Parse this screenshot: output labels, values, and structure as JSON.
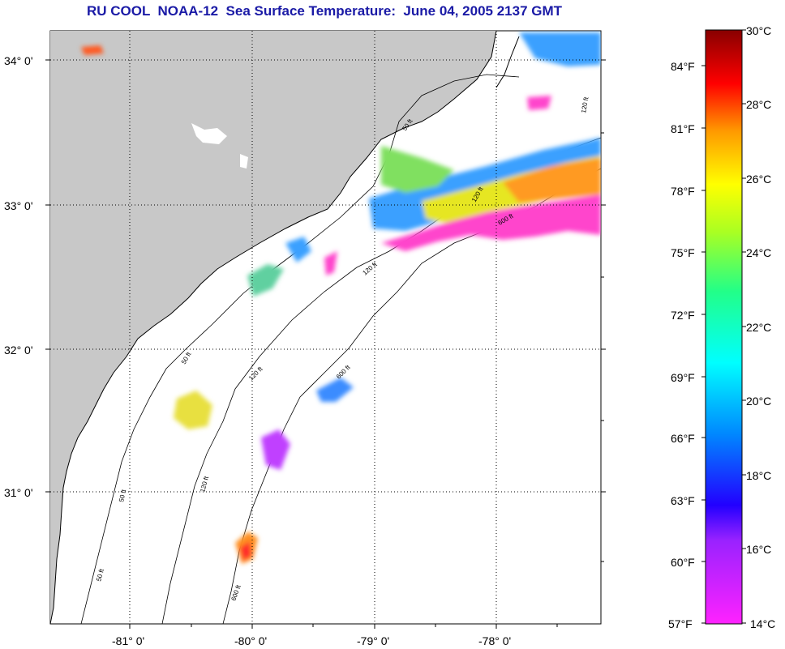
{
  "title": "RU COOL  NOAA-12  Sea Surface Temperature:  June 04, 2005 2137 GMT",
  "map": {
    "lon_labels": [
      "-81° 0'",
      "-80° 0'",
      "-79° 0'",
      "-78° 0'"
    ],
    "lat_labels": [
      "34° 0'",
      "33° 0'",
      "32° 0'",
      "31° 0'"
    ],
    "contour_labels": [
      "50 ft",
      "120 ft",
      "600 ft"
    ],
    "colors": {
      "land": "#c8c8c8",
      "ocean": "#ffffff",
      "gridline": "#000000"
    }
  },
  "colorbar": {
    "celsius_labels": [
      "30°C",
      "28°C",
      "26°C",
      "24°C",
      "22°C",
      "20°C",
      "18°C",
      "16°C",
      "14°C"
    ],
    "fahrenheit_labels": [
      "84°F",
      "81°F",
      "78°F",
      "75°F",
      "72°F",
      "69°F",
      "66°F",
      "63°F",
      "60°F",
      "57°F"
    ],
    "range_c": [
      14,
      30
    ],
    "range_f": [
      57,
      86
    ]
  }
}
